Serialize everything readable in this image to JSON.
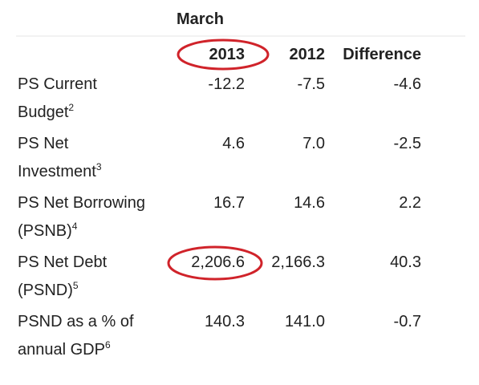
{
  "header": {
    "title": "March"
  },
  "table": {
    "columns": [
      "2013",
      "2012",
      "Difference"
    ],
    "rows": [
      {
        "label": [
          "PS Current",
          "Budget"
        ],
        "note": "2",
        "cells": [
          "-12.2",
          "-7.5",
          "-4.6"
        ]
      },
      {
        "label": [
          "PS Net",
          "Investment"
        ],
        "note": "3",
        "cells": [
          "4.6",
          "7.0",
          "-2.5"
        ]
      },
      {
        "label": [
          "PS Net Borrowing",
          "(PSNB)"
        ],
        "note": "4",
        "cells": [
          "16.7",
          "14.6",
          "2.2"
        ]
      },
      {
        "label": [
          "PS Net Debt",
          "(PSND)"
        ],
        "note": "5",
        "cells": [
          "2,206.6",
          "2,166.3",
          "40.3"
        ]
      },
      {
        "label": [
          "PSND as a % of",
          "annual GDP"
        ],
        "note": "6",
        "cells": [
          "140.3",
          "141.0",
          "-0.7"
        ]
      }
    ]
  }
}
